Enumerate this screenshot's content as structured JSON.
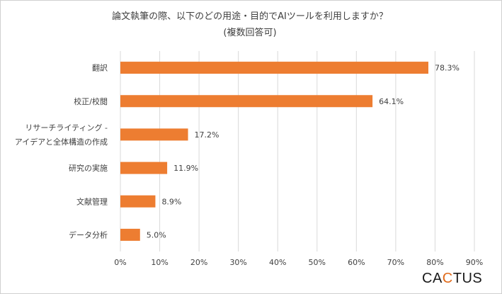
{
  "chart_data": {
    "type": "bar",
    "orientation": "horizontal",
    "title": "論文執筆の際、以下のどの用途・目的でAIツールを利用しますか？",
    "subtitle": "(複数回答可)",
    "categories": [
      [
        "翻訳"
      ],
      [
        "校正/校閲"
      ],
      [
        "リサーチライティング -",
        "アイデアと全体構造の作成"
      ],
      [
        "研究の実施"
      ],
      [
        "文献管理"
      ],
      [
        "データ分析"
      ]
    ],
    "values": [
      78.3,
      64.1,
      17.2,
      11.9,
      8.9,
      5.0
    ],
    "value_labels": [
      "78.3%",
      "64.1%",
      "17.2%",
      "11.9%",
      "8.9%",
      "5.0%"
    ],
    "xlim": [
      0,
      90
    ],
    "x_ticks": [
      "0%",
      "10%",
      "20%",
      "30%",
      "40%",
      "50%",
      "60%",
      "70%",
      "80%",
      "90%"
    ],
    "grid": true,
    "bar_color": "#ed7d31"
  },
  "logo": {
    "text_1": "CA",
    "text_accent": "C",
    "text_2": "TUS"
  }
}
